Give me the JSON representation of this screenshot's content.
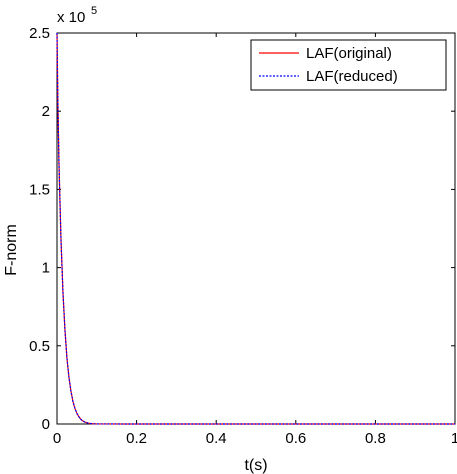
{
  "chart_data": {
    "type": "line",
    "xlabel": "t(s)",
    "ylabel": "F-norm",
    "y_multiplier_label": "x 10",
    "y_multiplier_exponent": "5",
    "xlim": [
      0,
      1
    ],
    "ylim": [
      0,
      250000
    ],
    "x_ticks": [
      0,
      0.2,
      0.4,
      0.6,
      0.8,
      1
    ],
    "x_tick_labels": [
      "0",
      "0.2",
      "0.4",
      "0.6",
      "0.8",
      "1"
    ],
    "y_ticks": [
      0,
      50000,
      100000,
      150000,
      200000,
      250000
    ],
    "y_tick_labels": [
      "0",
      "0.5",
      "1",
      "1.5",
      "2",
      "2.5"
    ],
    "grid": false,
    "legend_position": "top-right",
    "series": [
      {
        "name": "LAF(original)",
        "color": "#ff0000",
        "line_style": "solid",
        "x": [
          0,
          0.002,
          0.005,
          0.01,
          0.015,
          0.02,
          0.025,
          0.03,
          0.035,
          0.04,
          0.045,
          0.05,
          0.055,
          0.06,
          0.065,
          0.07,
          0.08,
          0.09,
          0.1,
          0.2,
          0.4,
          0.6,
          0.8,
          1
        ],
        "y": [
          250000,
          208000,
          166000,
          118000,
          84000,
          60000,
          42000,
          30000,
          21000,
          14500,
          10000,
          6800,
          4600,
          3000,
          1900,
          1200,
          450,
          150,
          50,
          0,
          0,
          0,
          0,
          0
        ]
      },
      {
        "name": "LAF(reduced)",
        "color": "#0000ff",
        "line_style": "dotted",
        "x": [
          0,
          0.002,
          0.005,
          0.01,
          0.015,
          0.02,
          0.025,
          0.03,
          0.035,
          0.04,
          0.045,
          0.05,
          0.055,
          0.06,
          0.065,
          0.07,
          0.08,
          0.09,
          0.1,
          0.2,
          0.4,
          0.6,
          0.8,
          1
        ],
        "y": [
          250000,
          208000,
          166000,
          118000,
          84000,
          60000,
          42000,
          30000,
          21000,
          14500,
          10000,
          6800,
          4600,
          3000,
          1900,
          1200,
          450,
          150,
          50,
          0,
          0,
          0,
          0,
          0
        ]
      }
    ]
  }
}
